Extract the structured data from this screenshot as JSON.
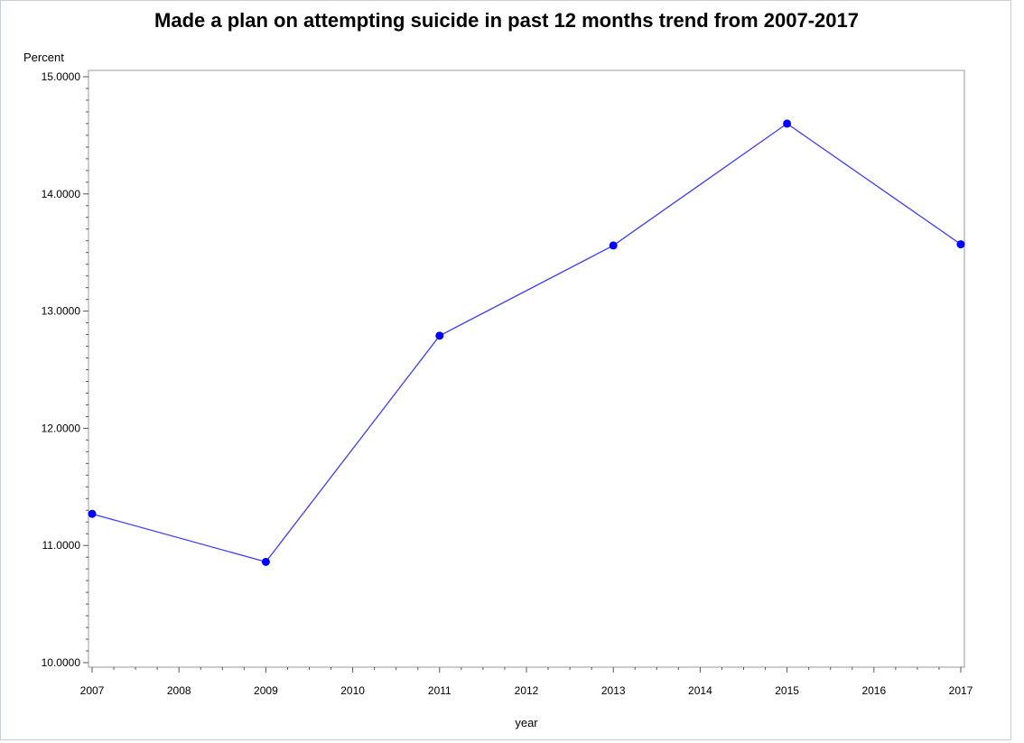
{
  "chart_data": {
    "type": "line",
    "title": "Made a plan on attempting suicide in past 12 months trend from 2007-2017",
    "xlabel": "year",
    "ylabel": "Percent",
    "x_ticks": [
      "2007",
      "2008",
      "2009",
      "2010",
      "2011",
      "2012",
      "2013",
      "2014",
      "2015",
      "2016",
      "2017"
    ],
    "y_ticks": [
      "10.0000",
      "11.0000",
      "12.0000",
      "13.0000",
      "14.0000",
      "15.0000"
    ],
    "xlim": [
      2007,
      2017
    ],
    "ylim": [
      10,
      15
    ],
    "grid": false,
    "series": [
      {
        "x": [
          2007,
          2009,
          2011,
          2013,
          2015,
          2017
        ],
        "y": [
          11.27,
          10.86,
          12.79,
          13.56,
          14.6,
          13.57
        ]
      }
    ],
    "colors": {
      "line": "#3b3bff",
      "marker": "#0000ff",
      "axis": "#555555"
    }
  }
}
